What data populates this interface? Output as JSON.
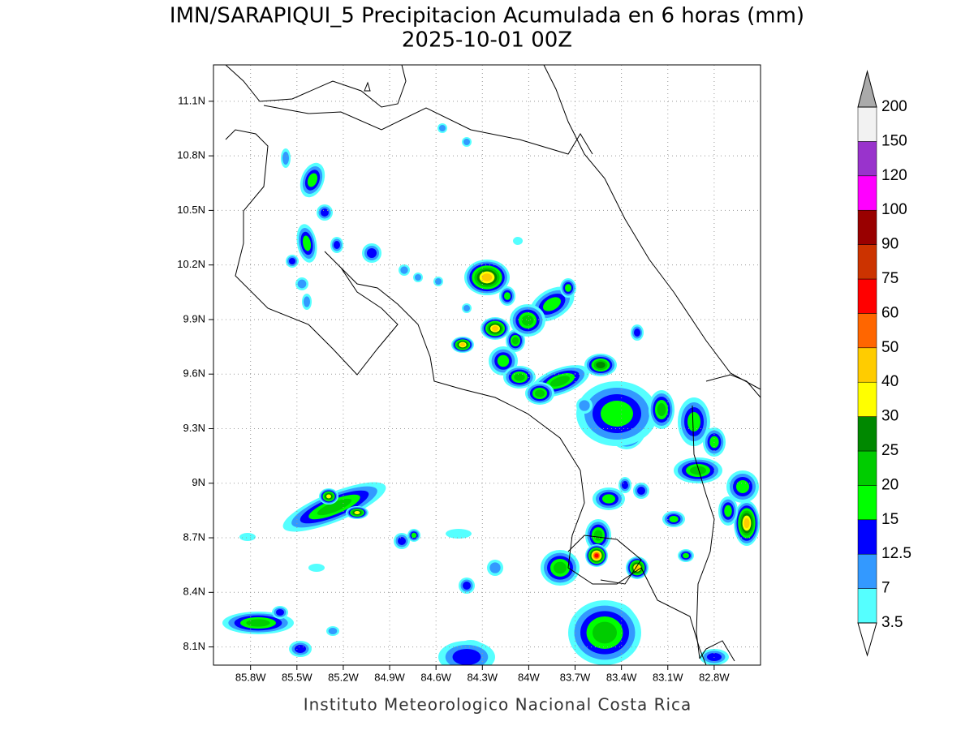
{
  "map": {
    "title": "IMN/SARAPIQUI_5 Precipitacion Acumulada en 6 horas (mm)",
    "subtitle": "2025-10-01 00Z",
    "footer": "Instituto Meteorologico Nacional Costa Rica",
    "xlim": [
      -86.04,
      -82.5
    ],
    "ylim": [
      8.0,
      11.3
    ],
    "xticks": [
      {
        "value": -85.8,
        "label": "85.8W"
      },
      {
        "value": -85.5,
        "label": "85.5W"
      },
      {
        "value": -85.2,
        "label": "85.2W"
      },
      {
        "value": -84.9,
        "label": "84.9W"
      },
      {
        "value": -84.6,
        "label": "84.6W"
      },
      {
        "value": -84.3,
        "label": "84.3W"
      },
      {
        "value": -84.0,
        "label": "84W"
      },
      {
        "value": -83.7,
        "label": "83.7W"
      },
      {
        "value": -83.4,
        "label": "83.4W"
      },
      {
        "value": -83.1,
        "label": "83.1W"
      },
      {
        "value": -82.8,
        "label": "82.8W"
      }
    ],
    "yticks": [
      {
        "value": 8.1,
        "label": "8.1N"
      },
      {
        "value": 8.4,
        "label": "8.4N"
      },
      {
        "value": 8.7,
        "label": "8.7N"
      },
      {
        "value": 9.0,
        "label": "9N"
      },
      {
        "value": 9.3,
        "label": "9.3N"
      },
      {
        "value": 9.6,
        "label": "9.6N"
      },
      {
        "value": 9.9,
        "label": "9.9N"
      },
      {
        "value": 10.2,
        "label": "10.2N"
      },
      {
        "value": 10.5,
        "label": "10.5N"
      },
      {
        "value": 10.8,
        "label": "10.8N"
      },
      {
        "value": 11.1,
        "label": "11.1N"
      }
    ],
    "grid": true,
    "colorbar": {
      "levels": [
        3.5,
        7,
        12.5,
        15,
        20,
        25,
        30,
        40,
        50,
        60,
        75,
        90,
        100,
        120,
        150,
        200
      ],
      "colors": [
        "#ffffff",
        "#55ffff",
        "#3399ff",
        "#0000ff",
        "#00ff00",
        "#00cc00",
        "#008800",
        "#ffff00",
        "#ffcc00",
        "#ff6600",
        "#ff0000",
        "#cc3300",
        "#990000",
        "#ff00ff",
        "#9933cc",
        "#f2f2f2",
        "#aaaaaa"
      ]
    }
  }
}
